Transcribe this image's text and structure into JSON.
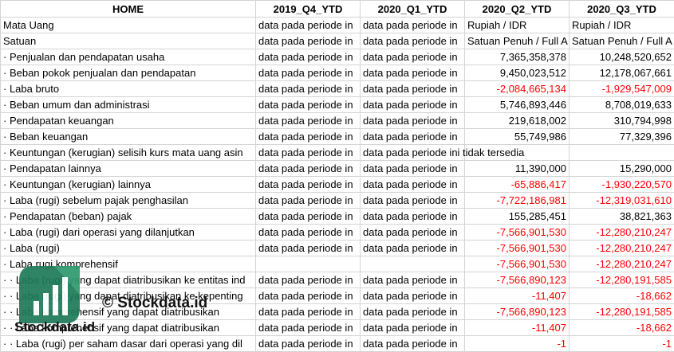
{
  "table": {
    "header": [
      "HOME",
      "2019_Q4_YTD",
      "2020_Q1_YTD",
      "2020_Q2_YTD",
      "2020_Q3_YTD"
    ],
    "rows": [
      [
        "Mata Uang",
        "data pada periode in",
        "data pada periode in",
        "Rupiah / IDR",
        "Rupiah / IDR"
      ],
      [
        "Satuan",
        "data pada periode in",
        "data pada periode in",
        "Satuan Penuh / Full A",
        "Satuan Penuh / Full A"
      ],
      [
        "· Penjualan dan pendapatan usaha",
        "data pada periode in",
        "data pada periode in",
        "7,365,358,378",
        "10,248,520,652"
      ],
      [
        "· Beban pokok penjualan dan pendapatan",
        "data pada periode in",
        "data pada periode in",
        "9,450,023,512",
        "12,178,067,661"
      ],
      [
        "· Laba bruto",
        "data pada periode in",
        "data pada periode in",
        "-2,084,665,134",
        "-1,929,547,009"
      ],
      [
        "· Beban umum dan administrasi",
        "data pada periode in",
        "data pada periode in",
        "5,746,893,446",
        "8,708,019,633"
      ],
      [
        "· Pendapatan keuangan",
        "data pada periode in",
        "data pada periode in",
        "219,618,002",
        "310,794,998"
      ],
      [
        "· Beban keuangan",
        "data pada periode in",
        "data pada periode in",
        "55,749,986",
        "77,329,396"
      ],
      [
        "· Keuntungan (kerugian) selisih kurs mata uang asin",
        "data pada periode in",
        "data pada periode ini tidak tersedia",
        null,
        null
      ],
      [
        "· Pendapatan lainnya",
        "data pada periode in",
        "data pada periode in",
        "11,390,000",
        "15,290,000"
      ],
      [
        "· Keuntungan (kerugian) lainnya",
        "data pada periode in",
        "data pada periode in",
        "-65,886,417",
        "-1,930,220,570"
      ],
      [
        "· Laba (rugi) sebelum pajak penghasilan",
        "data pada periode in",
        "data pada periode in",
        "-7,722,186,981",
        "-12,319,031,610"
      ],
      [
        "· Pendapatan (beban) pajak",
        "data pada periode in",
        "data pada periode in",
        "155,285,451",
        "38,821,363"
      ],
      [
        "· Laba (rugi) dari operasi yang dilanjutkan",
        "data pada periode in",
        "data pada periode in",
        "-7,566,901,530",
        "-12,280,210,247"
      ],
      [
        "· Laba (rugi)",
        "data pada periode in",
        "data pada periode in",
        "-7,566,901,530",
        "-12,280,210,247"
      ],
      [
        "· Laba rugi komprehensif",
        null,
        null,
        "-7,566,901,530",
        "-12,280,210,247"
      ],
      [
        "· · Laba (rugi) yang dapat diatribusikan ke entitas ind",
        "data pada periode in",
        "data pada periode in",
        "-7,566,890,123",
        "-12,280,191,585"
      ],
      [
        "· · Laba (rugi) yang dapat diatribusikan ke kepenting",
        "data pada periode in",
        "data pada periode in",
        "-11,407",
        "-18,662"
      ],
      [
        "· · Laba komprehensif yang dapat diatribusikan",
        "data pada periode in",
        "data pada periode in",
        "-7,566,890,123",
        "-12,280,191,585"
      ],
      [
        "· · Laba komprehensif yang dapat diatribusikan",
        "data pada periode in",
        "data pada periode in",
        "-11,407",
        "-18,662"
      ],
      [
        "· · Laba (rugi) per saham dasar dari operasi yang dil",
        "data pada periode in",
        "data pada periode in",
        "-1",
        "-1"
      ]
    ]
  },
  "watermark": {
    "caption": "© Stockdata.id",
    "logo_text": "Stockdata.id"
  }
}
